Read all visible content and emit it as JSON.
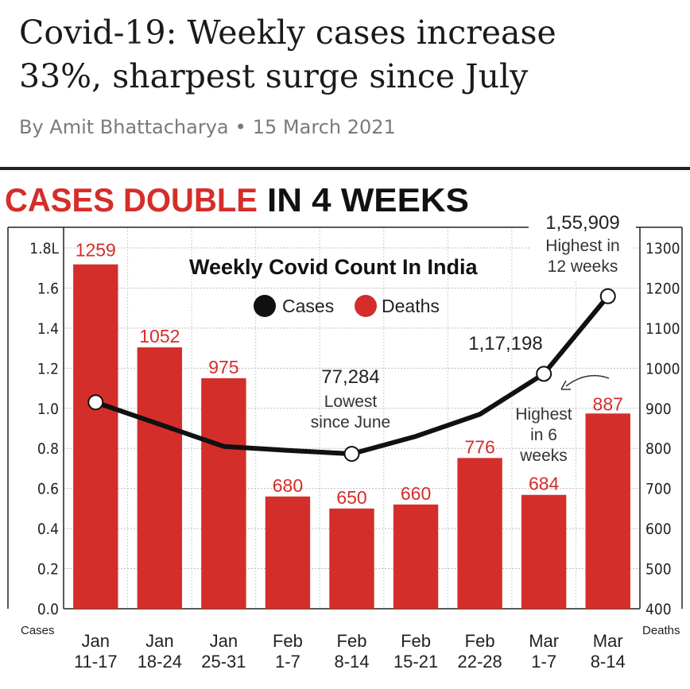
{
  "article": {
    "headline_line1": "Covid-19: Weekly cases increase",
    "headline_line2": "33%, sharpest surge since July",
    "author": "By Amit Bhattacharya",
    "separator": "•",
    "date": "15 March 2021"
  },
  "chart_data": {
    "type": "bar+line",
    "banner_red": "CASES DOUBLE",
    "banner_black": "IN 4 WEEKS",
    "title": "Weekly Covid Count In India",
    "categories": [
      [
        "Jan",
        "11-17"
      ],
      [
        "Jan",
        "18-24"
      ],
      [
        "Jan",
        "25-31"
      ],
      [
        "Feb",
        "1-7"
      ],
      [
        "Feb",
        "8-14"
      ],
      [
        "Feb",
        "15-21"
      ],
      [
        "Feb",
        "22-28"
      ],
      [
        "Mar",
        "1-7"
      ],
      [
        "Mar",
        "8-14"
      ]
    ],
    "legend": [
      "Cases",
      "Deaths"
    ],
    "left_axis": {
      "label": "Cases",
      "ticks": [
        "0.0",
        "0.2",
        "0.4",
        "0.6",
        "0.8",
        "1.0",
        "1.2",
        "1.4",
        "1.6",
        "1.8L"
      ],
      "ylim": [
        0,
        1.8
      ]
    },
    "right_axis": {
      "label": "Deaths",
      "ticks": [
        "400",
        "500",
        "600",
        "700",
        "800",
        "900",
        "1000",
        "1100",
        "1200",
        "1300"
      ],
      "ylim": [
        400,
        1300
      ]
    },
    "series": [
      {
        "name": "Cases",
        "kind": "line",
        "axis": "left",
        "values": [
          1.03,
          0.92,
          0.81,
          0.79,
          0.7728,
          0.86,
          0.97,
          1.17198,
          1.55909
        ]
      },
      {
        "name": "Deaths",
        "kind": "bar",
        "axis": "right",
        "values": [
          1259,
          1052,
          975,
          680,
          650,
          660,
          776,
          684,
          887
        ],
        "labels": [
          "1259",
          "1052",
          "975",
          "680",
          "650",
          "660",
          "776",
          "684",
          "887"
        ]
      }
    ],
    "annotations": {
      "peak_value": "1,55,909",
      "peak_note_1": "Highest in",
      "peak_note_2": "12 weeks",
      "mar1_value": "1,17,198",
      "low_value": "77,284",
      "low_note_1": "Lowest",
      "low_note_2": "since June",
      "deaths_note_1": "Highest",
      "deaths_note_2": "in 6",
      "deaths_note_3": "weeks"
    },
    "colors": {
      "bar": "#d42e2a",
      "line": "#111111",
      "marker_fill": "#ffffff"
    }
  }
}
